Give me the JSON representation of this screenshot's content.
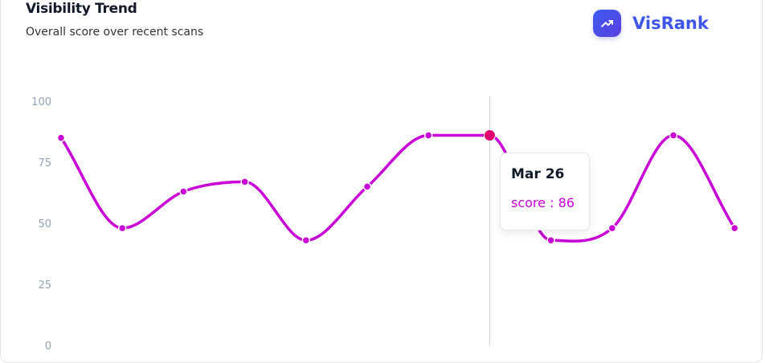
{
  "header": {
    "title": "Visibility Trend",
    "subtitle": "Overall score over recent scans"
  },
  "brand": {
    "name": "VisRank",
    "icon": "trending-up-icon",
    "color": "#3f55e8"
  },
  "tooltip": {
    "label": "Mar 26",
    "series": "score",
    "separator": " : ",
    "value": "86"
  },
  "colors": {
    "line": "#c800d6",
    "active_dot": "#e0006e",
    "cursor": "#cccccc"
  },
  "chart_data": {
    "type": "line",
    "title": "Visibility Trend",
    "ylim": [
      0,
      100
    ],
    "yticks": [
      "0",
      "25",
      "50",
      "75",
      "100"
    ],
    "grid": false,
    "curve": "monotone",
    "active_index": 7,
    "series": [
      {
        "name": "score",
        "values": [
          85,
          48,
          63,
          67,
          43,
          65,
          86,
          86,
          43,
          48,
          86,
          48
        ]
      }
    ]
  }
}
